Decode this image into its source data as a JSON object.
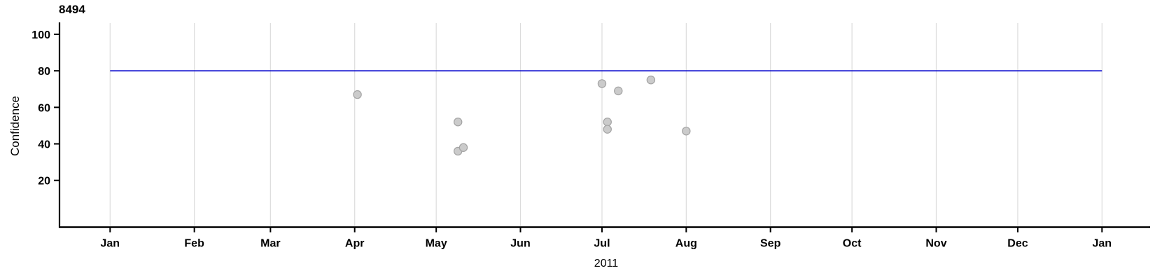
{
  "title": "8494",
  "axes": {
    "y_label": "Confidence",
    "x_label": "2011"
  },
  "colors": {
    "background": "#ffffff",
    "axis": "#000000",
    "gridline": "#dcdcdc",
    "reference_line": "#0000cc",
    "point_fill": "#cbcbcb",
    "point_stroke": "#a3a3a3",
    "text": "#000000"
  },
  "chart_data": {
    "type": "scatter",
    "title": "8494",
    "xlabel": "2011",
    "ylabel": "Confidence",
    "x_axis": {
      "unit": "time-months",
      "start": "2011-01-01",
      "end": "2012-01-01",
      "tick_labels": [
        "Jan",
        "Feb",
        "Mar",
        "Apr",
        "May",
        "Jun",
        "Jul",
        "Aug",
        "Sep",
        "Oct",
        "Nov",
        "Dec",
        "Jan"
      ],
      "grid": true
    },
    "y_axis": {
      "ticks": [
        20,
        40,
        60,
        80,
        100
      ],
      "tick_labels": [
        "20",
        "40",
        "60",
        "80",
        "100"
      ],
      "range_shown": [
        -5,
        106
      ],
      "grid": false
    },
    "reference_line": {
      "y": 80,
      "color": "#0000cc"
    },
    "legend": null,
    "points": [
      {
        "date": "2011-04-02",
        "value": 67
      },
      {
        "date": "2011-05-09",
        "value": 52
      },
      {
        "date": "2011-05-09",
        "value": 36
      },
      {
        "date": "2011-05-11",
        "value": 38
      },
      {
        "date": "2011-07-01",
        "value": 73
      },
      {
        "date": "2011-07-03",
        "value": 52
      },
      {
        "date": "2011-07-03",
        "value": 48
      },
      {
        "date": "2011-07-07",
        "value": 69
      },
      {
        "date": "2011-07-19",
        "value": 75
      },
      {
        "date": "2011-08-01",
        "value": 47
      }
    ]
  }
}
